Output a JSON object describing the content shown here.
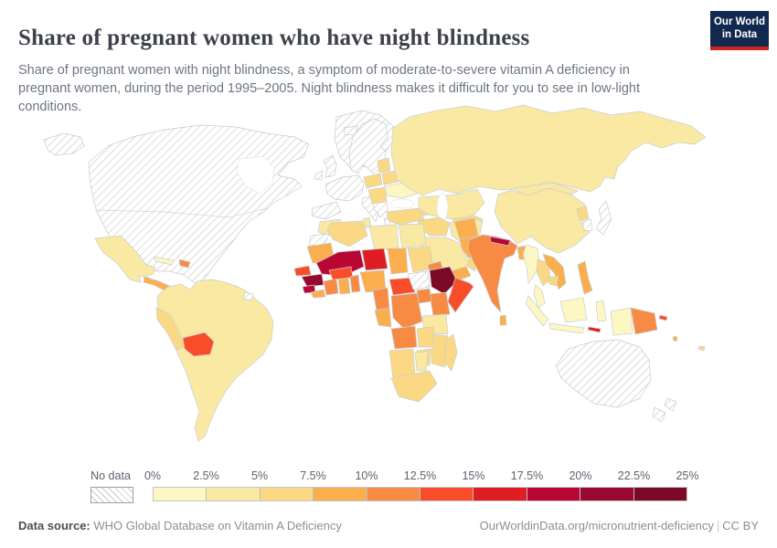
{
  "header": {
    "title": "Share of pregnant women who have night blindness",
    "subtitle": "Share of pregnant women with night blindness, a symptom of moderate-to-severe vitamin A deficiency in pregnant women, during the period 1995–2005. Night blindness makes it difficult for you to see in low-light conditions.",
    "logo": {
      "line1": "Our World",
      "line2": "in Data",
      "bg_color": "#12294F",
      "bar_color": "#CE261E"
    }
  },
  "legend": {
    "no_data_label": "No data",
    "ticks": [
      "0%",
      "2.5%",
      "5%",
      "7.5%",
      "10%",
      "12.5%",
      "15%",
      "17.5%",
      "20%",
      "22.5%",
      "25%"
    ],
    "bin_colors": [
      "#FDF7C4",
      "#F9E9A2",
      "#FBD984",
      "#FAAE4D",
      "#F78B43",
      "#F94D2A",
      "#DF1E24",
      "#B90733",
      "#99092F",
      "#7C0A26"
    ]
  },
  "footer": {
    "source_label": "Data source:",
    "source_text": "WHO Global Database on Vitamin A Deficiency",
    "link_text": "OurWorldinData.org/micronutrient-deficiency",
    "separator": "|",
    "license_text": "CC BY"
  },
  "chart_data": {
    "type": "choropleth_map",
    "title": "Share of pregnant women who have night blindness",
    "unit": "% of pregnant women",
    "period": "1995–2005",
    "color_scale": {
      "min": 0,
      "max": 25,
      "step": 2.5,
      "colors": [
        "#FDF7C4",
        "#F9E9A2",
        "#FBD984",
        "#FAAE4D",
        "#F78B43",
        "#F94D2A",
        "#DF1E24",
        "#B90733",
        "#99092F",
        "#7C0A26"
      ]
    },
    "no_data_regions": [
      "Canada",
      "United States",
      "Greenland",
      "Iceland",
      "United Kingdom",
      "Ireland",
      "Norway",
      "Sweden",
      "Finland",
      "France",
      "Germany",
      "Spain",
      "Italy",
      "Balkans",
      "Greece",
      "Western Sahara",
      "South Sudan",
      "South Korea",
      "Japan",
      "Australia",
      "New Zealand",
      "French Guiana"
    ],
    "regions": [
      {
        "name": "Ethiopia",
        "value_range": "22.5–25%"
      },
      {
        "name": "Guinea",
        "value_range": "20–22.5%"
      },
      {
        "name": "Mali",
        "value_range": "17.5–20%"
      },
      {
        "name": "Sierra Leone",
        "value_range": "17.5–20%"
      },
      {
        "name": "Nepal",
        "value_range": "17.5–20%"
      },
      {
        "name": "Niger",
        "value_range": "15–17.5%"
      },
      {
        "name": "Timor-Leste",
        "value_range": "15–17.5%"
      },
      {
        "name": "Bolivia",
        "value_range": "12.5–15%"
      },
      {
        "name": "Senegal",
        "value_range": "12.5–15%"
      },
      {
        "name": "Burkina Faso",
        "value_range": "12.5–15%"
      },
      {
        "name": "Central African Republic",
        "value_range": "12.5–15%"
      },
      {
        "name": "Somalia",
        "value_range": "12.5–15%"
      },
      {
        "name": "Solomon Islands",
        "value_range": "12.5–15%"
      },
      {
        "name": "Haiti",
        "value_range": "10–12.5%"
      },
      {
        "name": "India",
        "value_range": "10–12.5%"
      },
      {
        "name": "Cote d'Ivoire",
        "value_range": "10–12.5%"
      },
      {
        "name": "Togo & Benin",
        "value_range": "10–12.5%"
      },
      {
        "name": "Cameroon",
        "value_range": "10–12.5%"
      },
      {
        "name": "DR Congo",
        "value_range": "10–12.5%"
      },
      {
        "name": "Uganda",
        "value_range": "10–12.5%"
      },
      {
        "name": "Kenya",
        "value_range": "10–12.5%"
      },
      {
        "name": "Angola",
        "value_range": "10–12.5%"
      },
      {
        "name": "Eritrea",
        "value_range": "10–12.5%"
      },
      {
        "name": "Papua New Guinea",
        "value_range": "10–12.5%"
      },
      {
        "name": "Central America",
        "value_range": "7.5–10%"
      },
      {
        "name": "Mauritania",
        "value_range": "7.5–10%"
      },
      {
        "name": "Chad",
        "value_range": "7.5–10%"
      },
      {
        "name": "Liberia",
        "value_range": "7.5–10%"
      },
      {
        "name": "Ghana",
        "value_range": "7.5–10%"
      },
      {
        "name": "Nigeria",
        "value_range": "7.5–10%"
      },
      {
        "name": "Gabon & Congo",
        "value_range": "7.5–10%"
      },
      {
        "name": "Yemen",
        "value_range": "7.5–10%"
      },
      {
        "name": "Afghanistan",
        "value_range": "7.5–10%"
      },
      {
        "name": "Pakistan",
        "value_range": "7.5–10%"
      },
      {
        "name": "Bangladesh",
        "value_range": "7.5–10%"
      },
      {
        "name": "Sri Lanka",
        "value_range": "7.5–10%"
      },
      {
        "name": "Laos & Vietnam",
        "value_range": "7.5–10%"
      },
      {
        "name": "Philippines",
        "value_range": "7.5–10%"
      },
      {
        "name": "Vanuatu",
        "value_range": "7.5–10%"
      },
      {
        "name": "Peru",
        "value_range": "5–7.5%"
      },
      {
        "name": "Poland",
        "value_range": "5–7.5%"
      },
      {
        "name": "Baltic states",
        "value_range": "5–7.5%"
      },
      {
        "name": "Belarus",
        "value_range": "5–7.5%"
      },
      {
        "name": "Romania & Hungary",
        "value_range": "5–7.5%"
      },
      {
        "name": "Caucasus",
        "value_range": "5–7.5%"
      },
      {
        "name": "Turkey",
        "value_range": "5–7.5%"
      },
      {
        "name": "Syria & Iraq",
        "value_range": "5–7.5%"
      },
      {
        "name": "Central Asia",
        "value_range": "5–7.5%"
      },
      {
        "name": "Oman",
        "value_range": "5–7.5%"
      },
      {
        "name": "Algeria",
        "value_range": "5–7.5%"
      },
      {
        "name": "Sudan",
        "value_range": "5–7.5%"
      },
      {
        "name": "Zambia",
        "value_range": "5–7.5%"
      },
      {
        "name": "Mozambique",
        "value_range": "5–7.5%"
      },
      {
        "name": "Zimbabwe",
        "value_range": "5–7.5%"
      },
      {
        "name": "Namibia",
        "value_range": "5–7.5%"
      },
      {
        "name": "South Africa",
        "value_range": "5–7.5%"
      },
      {
        "name": "Madagascar",
        "value_range": "5–7.5%"
      },
      {
        "name": "Thailand",
        "value_range": "5–7.5%"
      },
      {
        "name": "Cambodia",
        "value_range": "5–7.5%"
      },
      {
        "name": "North Korea",
        "value_range": "5–7.5%"
      },
      {
        "name": "Fiji",
        "value_range": "5–7.5%"
      },
      {
        "name": "Mexico",
        "value_range": "2.5–5%"
      },
      {
        "name": "Brazil & most of South America",
        "value_range": "2.5–5%"
      },
      {
        "name": "Russia",
        "value_range": "2.5–5%"
      },
      {
        "name": "Kazakhstan",
        "value_range": "2.5–5%"
      },
      {
        "name": "China",
        "value_range": "2.5–5%"
      },
      {
        "name": "Mongolia",
        "value_range": "2.5–5%"
      },
      {
        "name": "Iran",
        "value_range": "2.5–5%"
      },
      {
        "name": "Saudi Arabia",
        "value_range": "2.5–5%"
      },
      {
        "name": "Libya",
        "value_range": "2.5–5%"
      },
      {
        "name": "Egypt",
        "value_range": "2.5–5%"
      },
      {
        "name": "Tunisia",
        "value_range": "2.5–5%"
      },
      {
        "name": "Morocco",
        "value_range": "2.5–5%"
      },
      {
        "name": "Tanzania",
        "value_range": "2.5–5%"
      },
      {
        "name": "Botswana",
        "value_range": "2.5–5%"
      },
      {
        "name": "Ukraine",
        "value_range": "0–2.5%"
      },
      {
        "name": "Myanmar",
        "value_range": "0–2.5%"
      },
      {
        "name": "Malaysia",
        "value_range": "0–2.5%"
      },
      {
        "name": "Indonesia",
        "value_range": "0–2.5%"
      },
      {
        "name": "Cuba",
        "value_range": "0–2.5%"
      }
    ]
  },
  "map_fills": {
    "canada_usa": "hatch",
    "greenland": "hatch",
    "iceland": "hatch",
    "uk": "hatch",
    "ireland": "hatch",
    "scandinavia": "hatch",
    "west_europe": "hatch",
    "spain": "hatch",
    "italy": "hatch",
    "balkans": "hatch",
    "greece": "hatch",
    "western_sahara": "hatch",
    "south_sudan": "hatch",
    "south_korea": "hatch",
    "japan": "hatch",
    "australia": "hatch",
    "new_zealand": "hatch",
    "french_guiana": "hatch",
    "ukraine": "#FDF7C4",
    "myanmar": "#FDF7C4",
    "malaysia_peninsula": "#FDF7C4",
    "sumatra": "#FDF7C4",
    "java": "#FDF7C4",
    "borneo": "#FDF7C4",
    "sulawesi": "#FDF7C4",
    "west_papua": "#FDF7C4",
    "cuba": "#FDF7C4",
    "mexico": "#F9E9A2",
    "south_america": "#F9E9A2",
    "russia": "#F9E9A2",
    "kazakhstan": "#F9E9A2",
    "china": "#F9E9A2",
    "mongolia": "#F9E9A2",
    "iran": "#F9E9A2",
    "saudi_arabia": "#F9E9A2",
    "libya": "#F9E9A2",
    "egypt": "#F9E9A2",
    "tunisia": "#F9E9A2",
    "morocco": "#F9E9A2",
    "tanzania": "#F9E9A2",
    "botswana": "#F9E9A2",
    "peru": "#FBD984",
    "poland": "#FBD984",
    "baltics": "#FBD984",
    "belarus": "#FBD984",
    "romania_hungary": "#FBD984",
    "caucasus": "#FBD984",
    "turkey": "#FBD984",
    "syria_iraq": "#FBD984",
    "central_asia": "#FBD984",
    "oman": "#FBD984",
    "algeria": "#FBD984",
    "sudan": "#FBD984",
    "zambia": "#FBD984",
    "mozambique": "#FBD984",
    "zimbabwe": "#FBD984",
    "namibia": "#FBD984",
    "south_africa": "#FBD984",
    "madagascar": "#FBD984",
    "thailand": "#FBD984",
    "cambodia": "#FBD984",
    "north_korea": "#FBD984",
    "fiji": "#FBD984",
    "central_america": "#FAAE4D",
    "mauritania": "#FAAE4D",
    "chad": "#FAAE4D",
    "liberia": "#FAAE4D",
    "ghana": "#FAAE4D",
    "nigeria": "#FAAE4D",
    "gabon_congo": "#FAAE4D",
    "yemen": "#FAAE4D",
    "afghanistan": "#FAAE4D",
    "pakistan": "#FAAE4D",
    "bangladesh": "#FAAE4D",
    "sri_lanka": "#FAAE4D",
    "laos_vietnam": "#FAAE4D",
    "philippines": "#FAAE4D",
    "vanuatu": "#FAAE4D",
    "haiti": "#F78B43",
    "india": "#F78B43",
    "cote_divoire": "#F78B43",
    "togo_benin": "#F78B43",
    "cameroon": "#F78B43",
    "drc": "#F78B43",
    "uganda": "#F78B43",
    "kenya": "#F78B43",
    "angola": "#F78B43",
    "eritrea": "#F78B43",
    "papua_new_guinea": "#F78B43",
    "bolivia": "#F94D2A",
    "senegal": "#F94D2A",
    "burkina_faso": "#F94D2A",
    "central_african_republic": "#F94D2A",
    "somalia": "#F94D2A",
    "solomon_islands": "#F94D2A",
    "niger": "#DF1E24",
    "timor_leste": "#DF1E24",
    "mali": "#B90733",
    "sierra_leone": "#B90733",
    "nepal": "#B90733",
    "guinea": "#99092F",
    "ethiopia": "#7C0A26"
  }
}
